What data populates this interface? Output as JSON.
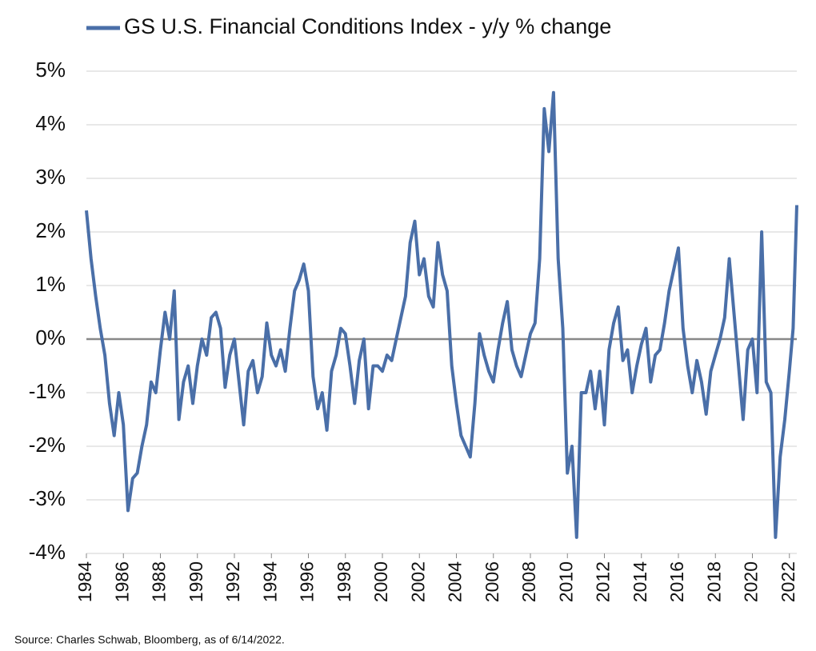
{
  "chart_data": {
    "type": "line",
    "legend_label": "GS U.S. Financial Conditions Index - y/y % change",
    "source": "Source: Charles Schwab, Bloomberg, as of 6/14/2022.",
    "x": [
      1984,
      1984.25,
      1984.5,
      1984.75,
      1985,
      1985.25,
      1985.5,
      1985.75,
      1986,
      1986.25,
      1986.5,
      1986.75,
      1987,
      1987.25,
      1987.5,
      1987.75,
      1988,
      1988.25,
      1988.5,
      1988.75,
      1989,
      1989.25,
      1989.5,
      1989.75,
      1990,
      1990.25,
      1990.5,
      1990.75,
      1991,
      1991.25,
      1991.5,
      1991.75,
      1992,
      1992.25,
      1992.5,
      1992.75,
      1993,
      1993.25,
      1993.5,
      1993.75,
      1994,
      1994.25,
      1994.5,
      1994.75,
      1995,
      1995.25,
      1995.5,
      1995.75,
      1996,
      1996.25,
      1996.5,
      1996.75,
      1997,
      1997.25,
      1997.5,
      1997.75,
      1998,
      1998.25,
      1998.5,
      1998.75,
      1999,
      1999.25,
      1999.5,
      1999.75,
      2000,
      2000.25,
      2000.5,
      2000.75,
      2001,
      2001.25,
      2001.5,
      2001.75,
      2002,
      2002.25,
      2002.5,
      2002.75,
      2003,
      2003.25,
      2003.5,
      2003.75,
      2004,
      2004.25,
      2004.5,
      2004.75,
      2005,
      2005.25,
      2005.5,
      2005.75,
      2006,
      2006.25,
      2006.5,
      2006.75,
      2007,
      2007.25,
      2007.5,
      2007.75,
      2008,
      2008.25,
      2008.5,
      2008.75,
      2009,
      2009.25,
      2009.5,
      2009.75,
      2010,
      2010.25,
      2010.5,
      2010.75,
      2011,
      2011.25,
      2011.5,
      2011.75,
      2012,
      2012.25,
      2012.5,
      2012.75,
      2013,
      2013.25,
      2013.5,
      2013.75,
      2014,
      2014.25,
      2014.5,
      2014.75,
      2015,
      2015.25,
      2015.5,
      2015.75,
      2016,
      2016.25,
      2016.5,
      2016.75,
      2017,
      2017.25,
      2017.5,
      2017.75,
      2018,
      2018.25,
      2018.5,
      2018.75,
      2019,
      2019.25,
      2019.5,
      2019.75,
      2020,
      2020.25,
      2020.5,
      2020.75,
      2021,
      2021.25,
      2021.5,
      2021.75,
      2022,
      2022.2,
      2022.4
    ],
    "series": [
      {
        "name": "GS U.S. Financial Conditions Index - y/y % change",
        "color": "#4a6fa8",
        "values": [
          2.4,
          1.5,
          0.8,
          0.2,
          -0.3,
          -1.2,
          -1.8,
          -1.0,
          -1.6,
          -3.2,
          -2.6,
          -2.5,
          -2.0,
          -1.6,
          -0.8,
          -1.0,
          -0.2,
          0.5,
          0.0,
          0.9,
          -1.5,
          -0.8,
          -0.5,
          -1.2,
          -0.5,
          0.0,
          -0.3,
          0.4,
          0.5,
          0.2,
          -0.9,
          -0.3,
          0.0,
          -0.8,
          -1.6,
          -0.6,
          -0.4,
          -1.0,
          -0.7,
          0.3,
          -0.3,
          -0.5,
          -0.2,
          -0.6,
          0.2,
          0.9,
          1.1,
          1.4,
          0.9,
          -0.7,
          -1.3,
          -1.0,
          -1.7,
          -0.6,
          -0.3,
          0.2,
          0.1,
          -0.5,
          -1.2,
          -0.4,
          0.0,
          -1.3,
          -0.5,
          -0.5,
          -0.6,
          -0.3,
          -0.4,
          0.0,
          0.4,
          0.8,
          1.8,
          2.2,
          1.2,
          1.5,
          0.8,
          0.6,
          1.8,
          1.2,
          0.9,
          -0.5,
          -1.2,
          -1.8,
          -2.0,
          -2.2,
          -1.2,
          0.1,
          -0.3,
          -0.6,
          -0.8,
          -0.2,
          0.3,
          0.7,
          -0.2,
          -0.5,
          -0.7,
          -0.3,
          0.1,
          0.3,
          1.5,
          4.3,
          3.5,
          4.6,
          1.5,
          0.2,
          -2.5,
          -2.0,
          -3.7,
          -1.0,
          -1.0,
          -0.6,
          -1.3,
          -0.6,
          -1.6,
          -0.2,
          0.3,
          0.6,
          -0.4,
          -0.2,
          -1.0,
          -0.5,
          -0.1,
          0.2,
          -0.8,
          -0.3,
          -0.2,
          0.3,
          0.9,
          1.3,
          1.7,
          0.2,
          -0.5,
          -1.0,
          -0.4,
          -0.8,
          -1.4,
          -0.6,
          -0.3,
          0.0,
          0.4,
          1.5,
          0.5,
          -0.5,
          -1.5,
          -0.2,
          0.0,
          -1.0,
          2.0,
          -0.8,
          -1.0,
          -3.7,
          -2.2,
          -1.5,
          -0.6,
          0.2,
          2.5
        ]
      }
    ],
    "xlim": [
      1984,
      2022.4
    ],
    "xticks": [
      1984,
      1986,
      1988,
      1990,
      1992,
      1994,
      1996,
      1998,
      2000,
      2002,
      2004,
      2006,
      2008,
      2010,
      2012,
      2014,
      2016,
      2018,
      2020,
      2022
    ],
    "ylim": [
      -4,
      5
    ],
    "yticks": [
      {
        "value": -4,
        "label": "-4%"
      },
      {
        "value": -3,
        "label": "-3%"
      },
      {
        "value": -2,
        "label": "-2%"
      },
      {
        "value": -1,
        "label": "-1%"
      },
      {
        "value": 0,
        "label": "0%"
      },
      {
        "value": 1,
        "label": "1%"
      },
      {
        "value": 2,
        "label": "2%"
      },
      {
        "value": 3,
        "label": "3%"
      },
      {
        "value": 4,
        "label": "4%"
      },
      {
        "value": 5,
        "label": "5%"
      }
    ],
    "grid": true
  }
}
